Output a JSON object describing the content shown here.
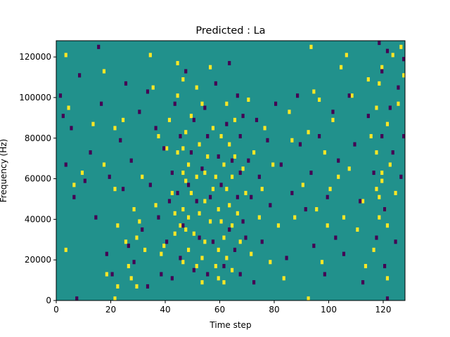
{
  "chart_data": {
    "type": "heatmap",
    "title": "Predicted : La",
    "xlabel": "Time step",
    "ylabel": "Frequency (Hz)",
    "xlim": [
      0,
      128
    ],
    "ylim": [
      0,
      128000
    ],
    "x_ticks": [
      0,
      20,
      40,
      60,
      80,
      100,
      120
    ],
    "x_tick_labels": [
      "0",
      "20",
      "40",
      "60",
      "80",
      "100",
      "120"
    ],
    "y_ticks": [
      0,
      20000,
      40000,
      60000,
      80000,
      100000,
      120000
    ],
    "y_tick_labels": [
      "0",
      "20000",
      "40000",
      "60000",
      "80000",
      "100000",
      "120000"
    ],
    "grid": false,
    "colormap": "viridis",
    "value_levels": [
      -1,
      0,
      1
    ],
    "level_colors": {
      "-1": "#440154",
      "0": "#21918c",
      "1": "#fde725"
    },
    "background_value": 0,
    "rows": 64,
    "row_height_hz": 2000,
    "high_cells": [
      [
        3,
        12
      ],
      [
        3,
        60
      ],
      [
        4,
        47
      ],
      [
        6,
        28
      ],
      [
        9,
        31
      ],
      [
        13,
        43
      ],
      [
        17,
        33
      ],
      [
        17,
        56
      ],
      [
        18,
        6
      ],
      [
        21,
        0
      ],
      [
        21,
        27
      ],
      [
        21,
        42
      ],
      [
        22,
        18
      ],
      [
        22,
        3
      ],
      [
        24,
        44
      ],
      [
        25,
        14
      ],
      [
        26,
        8
      ],
      [
        27,
        5
      ],
      [
        28,
        22
      ],
      [
        29,
        15
      ],
      [
        29,
        3
      ],
      [
        30,
        19
      ],
      [
        31,
        30
      ],
      [
        32,
        12
      ],
      [
        34,
        60
      ],
      [
        35,
        52
      ],
      [
        36,
        23
      ],
      [
        37,
        40
      ],
      [
        38,
        11
      ],
      [
        39,
        13
      ],
      [
        40,
        37
      ],
      [
        41,
        44
      ],
      [
        42,
        26
      ],
      [
        43,
        16
      ],
      [
        43,
        21
      ],
      [
        44,
        50
      ],
      [
        44,
        36
      ],
      [
        44,
        58
      ],
      [
        45,
        18
      ],
      [
        46,
        9
      ],
      [
        46,
        22
      ],
      [
        46,
        31
      ],
      [
        46,
        37
      ],
      [
        46,
        54
      ],
      [
        47,
        17
      ],
      [
        47,
        29
      ],
      [
        47,
        41
      ],
      [
        48,
        12
      ],
      [
        48,
        20
      ],
      [
        48,
        33
      ],
      [
        49,
        26
      ],
      [
        49,
        45
      ],
      [
        50,
        16
      ],
      [
        51,
        8
      ],
      [
        51,
        30
      ],
      [
        51,
        52
      ],
      [
        52,
        21
      ],
      [
        52,
        38
      ],
      [
        53,
        4
      ],
      [
        53,
        10
      ],
      [
        53,
        48
      ],
      [
        54,
        14
      ],
      [
        54,
        24
      ],
      [
        54,
        31
      ],
      [
        55,
        35
      ],
      [
        56,
        19
      ],
      [
        56,
        57
      ],
      [
        57,
        27
      ],
      [
        57,
        42
      ],
      [
        58,
        8
      ],
      [
        58,
        30
      ],
      [
        59,
        5
      ],
      [
        59,
        12
      ],
      [
        59,
        22
      ],
      [
        60,
        40
      ],
      [
        60,
        19
      ],
      [
        61,
        33
      ],
      [
        61,
        15
      ],
      [
        61,
        4
      ],
      [
        62,
        48
      ],
      [
        62,
        27
      ],
      [
        62,
        10
      ],
      [
        63,
        23
      ],
      [
        63,
        38
      ],
      [
        64,
        18
      ],
      [
        64,
        30
      ],
      [
        64,
        7
      ],
      [
        65,
        35
      ],
      [
        65,
        44
      ],
      [
        66,
        21
      ],
      [
        67,
        14
      ],
      [
        68,
        32
      ],
      [
        69,
        26
      ],
      [
        70,
        49
      ],
      [
        71,
        11
      ],
      [
        72,
        36
      ],
      [
        74,
        20
      ],
      [
        75,
        27
      ],
      [
        76,
        42
      ],
      [
        78,
        9
      ],
      [
        79,
        33
      ],
      [
        81,
        18
      ],
      [
        83,
        5
      ],
      [
        85,
        46
      ],
      [
        86,
        39
      ],
      [
        87,
        20
      ],
      [
        90,
        28
      ],
      [
        92,
        0
      ],
      [
        92,
        41
      ],
      [
        93,
        62
      ],
      [
        94,
        51
      ],
      [
        95,
        22
      ],
      [
        96,
        49
      ],
      [
        97,
        9
      ],
      [
        98,
        36
      ],
      [
        99,
        18
      ],
      [
        100,
        27
      ],
      [
        101,
        44
      ],
      [
        103,
        30
      ],
      [
        104,
        57
      ],
      [
        105,
        20
      ],
      [
        106,
        60
      ],
      [
        107,
        32
      ],
      [
        108,
        50
      ],
      [
        110,
        17
      ],
      [
        112,
        24
      ],
      [
        113,
        8
      ],
      [
        114,
        54
      ],
      [
        115,
        40
      ],
      [
        116,
        12
      ],
      [
        117,
        27
      ],
      [
        117,
        36
      ],
      [
        117,
        47
      ],
      [
        118,
        20
      ],
      [
        118,
        25
      ],
      [
        118,
        53
      ],
      [
        119,
        29
      ],
      [
        119,
        31
      ],
      [
        119,
        57
      ],
      [
        120,
        22
      ],
      [
        121,
        5
      ],
      [
        121,
        18
      ],
      [
        121,
        43
      ],
      [
        122,
        33
      ],
      [
        123,
        60
      ],
      [
        124,
        26
      ],
      [
        125,
        48
      ],
      [
        126,
        62
      ],
      [
        127,
        55
      ]
    ],
    "low_cells": [
      [
        1,
        50
      ],
      [
        2,
        45
      ],
      [
        3,
        33
      ],
      [
        5,
        42
      ],
      [
        6,
        25
      ],
      [
        7,
        0
      ],
      [
        8,
        55
      ],
      [
        10,
        29
      ],
      [
        12,
        36
      ],
      [
        14,
        20
      ],
      [
        15,
        62
      ],
      [
        16,
        48
      ],
      [
        18,
        11
      ],
      [
        19,
        30
      ],
      [
        20,
        6
      ],
      [
        23,
        39
      ],
      [
        24,
        27
      ],
      [
        25,
        53
      ],
      [
        26,
        13
      ],
      [
        27,
        34
      ],
      [
        28,
        9
      ],
      [
        30,
        46
      ],
      [
        31,
        17
      ],
      [
        33,
        3
      ],
      [
        33,
        51
      ],
      [
        34,
        28
      ],
      [
        36,
        42
      ],
      [
        37,
        20
      ],
      [
        38,
        6
      ],
      [
        39,
        37
      ],
      [
        40,
        14
      ],
      [
        41,
        24
      ],
      [
        42,
        31
      ],
      [
        42,
        5
      ],
      [
        43,
        48
      ],
      [
        44,
        26
      ],
      [
        45,
        10
      ],
      [
        45,
        40
      ],
      [
        46,
        18
      ],
      [
        47,
        56
      ],
      [
        48,
        28
      ],
      [
        49,
        36
      ],
      [
        50,
        7
      ],
      [
        50,
        44
      ],
      [
        51,
        24
      ],
      [
        52,
        15
      ],
      [
        53,
        32
      ],
      [
        54,
        47
      ],
      [
        55,
        6
      ],
      [
        55,
        40
      ],
      [
        56,
        25
      ],
      [
        57,
        14
      ],
      [
        58,
        53
      ],
      [
        59,
        35
      ],
      [
        60,
        28
      ],
      [
        61,
        8
      ],
      [
        62,
        43
      ],
      [
        63,
        17
      ],
      [
        63,
        58
      ],
      [
        64,
        34
      ],
      [
        65,
        12
      ],
      [
        66,
        25
      ],
      [
        66,
        50
      ],
      [
        67,
        6
      ],
      [
        67,
        31
      ],
      [
        67,
        40
      ],
      [
        68,
        19
      ],
      [
        68,
        45
      ],
      [
        69,
        15
      ],
      [
        70,
        34
      ],
      [
        71,
        25
      ],
      [
        72,
        4
      ],
      [
        73,
        44
      ],
      [
        74,
        30
      ],
      [
        75,
        14
      ],
      [
        77,
        39
      ],
      [
        78,
        23
      ],
      [
        80,
        48
      ],
      [
        82,
        33
      ],
      [
        84,
        10
      ],
      [
        86,
        26
      ],
      [
        88,
        50
      ],
      [
        89,
        38
      ],
      [
        91,
        22
      ],
      [
        93,
        31
      ],
      [
        94,
        13
      ],
      [
        96,
        40
      ],
      [
        98,
        6
      ],
      [
        99,
        25
      ],
      [
        101,
        46
      ],
      [
        102,
        15
      ],
      [
        103,
        34
      ],
      [
        105,
        11
      ],
      [
        107,
        50
      ],
      [
        109,
        38
      ],
      [
        111,
        24
      ],
      [
        112,
        4
      ],
      [
        114,
        45
      ],
      [
        116,
        31
      ],
      [
        117,
        15
      ],
      [
        118,
        63
      ],
      [
        119,
        56
      ],
      [
        119,
        40
      ],
      [
        120,
        8
      ],
      [
        120,
        22
      ],
      [
        121,
        0
      ],
      [
        121,
        61
      ],
      [
        122,
        47
      ],
      [
        123,
        36
      ],
      [
        124,
        14
      ],
      [
        125,
        52
      ],
      [
        126,
        30
      ],
      [
        127,
        40
      ],
      [
        127,
        59
      ]
    ]
  }
}
